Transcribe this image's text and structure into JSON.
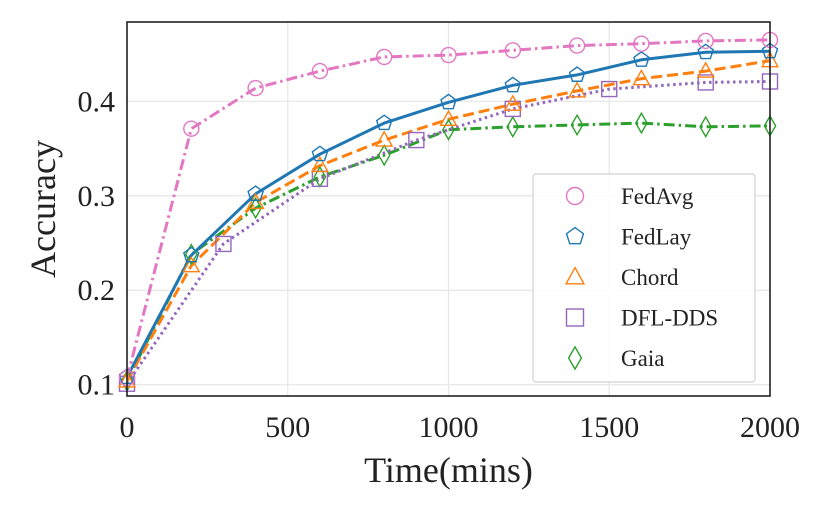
{
  "chart_data": {
    "type": "line",
    "xlabel": "Time(mins)",
    "ylabel": "Accuracy",
    "xlim": [
      0,
      2000
    ],
    "ylim": [
      0.088,
      0.484
    ],
    "xticks": [
      0,
      500,
      1000,
      1500,
      2000
    ],
    "yticks": [
      0.1,
      0.2,
      0.3,
      0.4
    ],
    "xtick_labels": [
      "0",
      "500",
      "1000",
      "1500",
      "2000"
    ],
    "ytick_labels": [
      "0.1",
      "0.2",
      "0.3",
      "0.4"
    ],
    "grid": true,
    "legend_position": "lower-right",
    "series": [
      {
        "name": "FedAvg",
        "color": "#e377c2",
        "dash": "dashdot",
        "marker": "circle",
        "x": [
          0,
          200,
          400,
          600,
          800,
          1000,
          1200,
          1400,
          1600,
          1800,
          2000
        ],
        "y": [
          0.107,
          0.371,
          0.414,
          0.432,
          0.447,
          0.449,
          0.454,
          0.459,
          0.461,
          0.464,
          0.465
        ]
      },
      {
        "name": "FedLay",
        "color": "#1f77b4",
        "dash": "solid",
        "marker": "pentagon",
        "x": [
          0,
          200,
          400,
          600,
          800,
          1000,
          1200,
          1400,
          1600,
          1800,
          2000
        ],
        "y": [
          0.108,
          0.237,
          0.302,
          0.344,
          0.377,
          0.399,
          0.417,
          0.428,
          0.444,
          0.452,
          0.453
        ]
      },
      {
        "name": "Chord",
        "color": "#ff7f0e",
        "dash": "dashed",
        "marker": "triangle",
        "x": [
          0,
          200,
          400,
          600,
          800,
          1000,
          1200,
          1400,
          1600,
          1800,
          2000
        ],
        "y": [
          0.104,
          0.226,
          0.293,
          0.332,
          0.359,
          0.381,
          0.397,
          0.411,
          0.424,
          0.432,
          0.443
        ]
      },
      {
        "name": "DFL-DDS",
        "color": "#9467bd",
        "dash": "dotted",
        "marker": "square",
        "x": [
          0,
          300,
          600,
          900,
          1200,
          1500,
          1800,
          2000
        ],
        "y": [
          0.101,
          0.249,
          0.318,
          0.359,
          0.392,
          0.413,
          0.42,
          0.421
        ]
      },
      {
        "name": "Gaia",
        "color": "#2ca02c",
        "dash": "dashdot",
        "marker": "diamond",
        "x": [
          0,
          200,
          400,
          600,
          800,
          1000,
          1200,
          1400,
          1600,
          1800,
          2000
        ],
        "y": [
          0.104,
          0.238,
          0.287,
          0.32,
          0.343,
          0.37,
          0.373,
          0.375,
          0.377,
          0.373,
          0.374
        ]
      }
    ]
  }
}
